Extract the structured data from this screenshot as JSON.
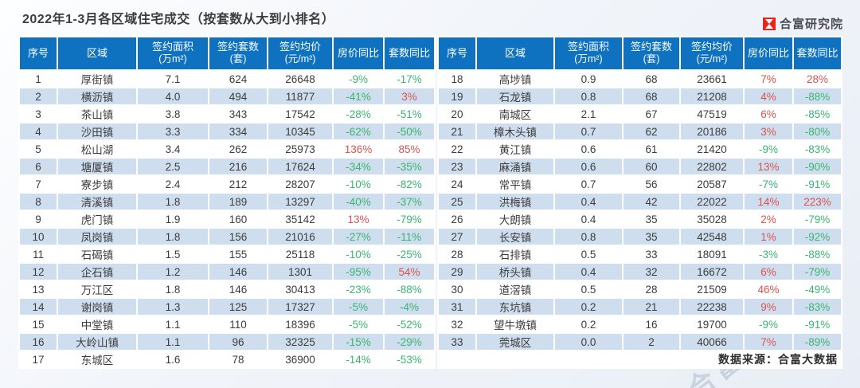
{
  "title": "2022年1-3月各区域住宅成交（按套数从大到小排名）",
  "brand": {
    "icon": "hourglass-logo-icon",
    "name": "合富研究院",
    "watermark": "合富研究院",
    "brand_red": "#e8251d"
  },
  "source_note": "数据来源：合富大数据",
  "colors": {
    "header_bg": "#0f72c1",
    "row_alt_bg": "#cfdeee",
    "up_red": "#d95450",
    "down_green": "#3bb470",
    "text": "#3c3c3c"
  },
  "chart_data": {
    "type": "table",
    "title": "2022年1-3月各区域住宅成交（按套数从大到小排名）",
    "layout": "two side-by-side tables; rows 1-17 left, rows 18-33 right; sorted by 签约套数 descending",
    "columns": [
      {
        "label": "序号",
        "sub": ""
      },
      {
        "label": "区域",
        "sub": ""
      },
      {
        "label": "签约面积",
        "sub": "(万m²)"
      },
      {
        "label": "签约套数",
        "sub": "(套)"
      },
      {
        "label": "签约均价",
        "sub": "(元/m²)"
      },
      {
        "label": "房价同比",
        "sub": ""
      },
      {
        "label": "套数同比",
        "sub": ""
      }
    ],
    "rows": [
      [
        "1",
        "厚街镇",
        "7.1",
        "624",
        "26648",
        "-9%",
        "-17%"
      ],
      [
        "2",
        "横沥镇",
        "4.0",
        "494",
        "11877",
        "-41%",
        "3%"
      ],
      [
        "3",
        "茶山镇",
        "3.8",
        "343",
        "17542",
        "-28%",
        "-51%"
      ],
      [
        "4",
        "沙田镇",
        "3.3",
        "334",
        "10345",
        "-62%",
        "-50%"
      ],
      [
        "5",
        "松山湖",
        "3.4",
        "262",
        "25973",
        "136%",
        "85%"
      ],
      [
        "6",
        "塘厦镇",
        "2.5",
        "216",
        "17624",
        "-34%",
        "-35%"
      ],
      [
        "7",
        "寮步镇",
        "2.4",
        "212",
        "28207",
        "-10%",
        "-82%"
      ],
      [
        "8",
        "清溪镇",
        "1.8",
        "189",
        "13297",
        "-40%",
        "-37%"
      ],
      [
        "9",
        "虎门镇",
        "1.9",
        "160",
        "35142",
        "13%",
        "-79%"
      ],
      [
        "10",
        "凤岗镇",
        "1.8",
        "156",
        "21016",
        "-27%",
        "-11%"
      ],
      [
        "11",
        "石碣镇",
        "1.5",
        "155",
        "25118",
        "-10%",
        "-25%"
      ],
      [
        "12",
        "企石镇",
        "1.2",
        "146",
        "1301",
        "-95%",
        "54%"
      ],
      [
        "13",
        "万江区",
        "1.8",
        "146",
        "30413",
        "-23%",
        "-88%"
      ],
      [
        "14",
        "谢岗镇",
        "1.3",
        "125",
        "17327",
        "-5%",
        "-4%"
      ],
      [
        "15",
        "中堂镇",
        "1.1",
        "110",
        "18396",
        "-5%",
        "-52%"
      ],
      [
        "16",
        "大岭山镇",
        "1.1",
        "96",
        "32325",
        "-15%",
        "-29%"
      ],
      [
        "17",
        "东城区",
        "1.6",
        "78",
        "36900",
        "-14%",
        "-53%"
      ],
      [
        "18",
        "高埗镇",
        "0.9",
        "68",
        "23661",
        "7%",
        "28%"
      ],
      [
        "19",
        "石龙镇",
        "0.8",
        "68",
        "21208",
        "4%",
        "-88%"
      ],
      [
        "20",
        "南城区",
        "2.1",
        "67",
        "47519",
        "6%",
        "-85%"
      ],
      [
        "21",
        "樟木头镇",
        "0.7",
        "62",
        "20186",
        "3%",
        "-80%"
      ],
      [
        "22",
        "黄江镇",
        "0.6",
        "61",
        "21420",
        "-9%",
        "-83%"
      ],
      [
        "23",
        "麻涌镇",
        "0.6",
        "60",
        "22802",
        "13%",
        "-90%"
      ],
      [
        "24",
        "常平镇",
        "0.7",
        "56",
        "20587",
        "-7%",
        "-91%"
      ],
      [
        "25",
        "洪梅镇",
        "0.4",
        "42",
        "22022",
        "14%",
        "223%"
      ],
      [
        "26",
        "大朗镇",
        "0.4",
        "35",
        "35028",
        "2%",
        "-79%"
      ],
      [
        "27",
        "长安镇",
        "0.8",
        "35",
        "42548",
        "1%",
        "-92%"
      ],
      [
        "28",
        "石排镇",
        "0.5",
        "33",
        "18091",
        "-3%",
        "-88%"
      ],
      [
        "29",
        "桥头镇",
        "0.4",
        "32",
        "16672",
        "6%",
        "-79%"
      ],
      [
        "30",
        "道滘镇",
        "0.5",
        "28",
        "21509",
        "46%",
        "-49%"
      ],
      [
        "31",
        "东坑镇",
        "0.2",
        "21",
        "22238",
        "9%",
        "-83%"
      ],
      [
        "32",
        "望牛墩镇",
        "0.2",
        "16",
        "19700",
        "-9%",
        "-91%"
      ],
      [
        "33",
        "莞城区",
        "0.0",
        "2",
        "40066",
        "7%",
        "-89%"
      ]
    ]
  }
}
